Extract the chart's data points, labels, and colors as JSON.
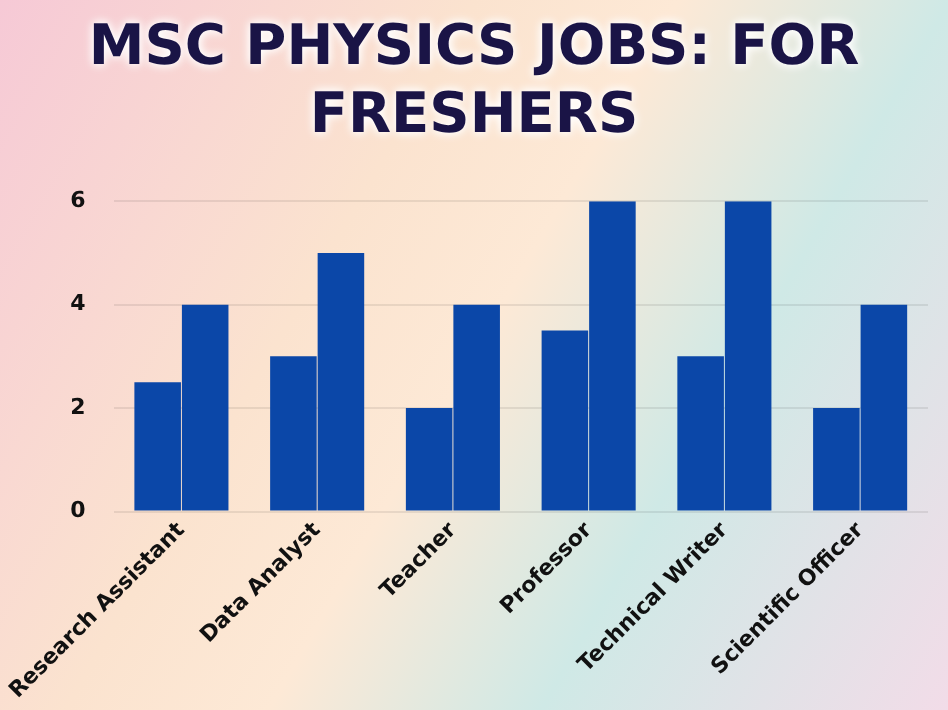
{
  "chart_data": {
    "type": "bar",
    "title": "MSC PHYSICS JOBS: FOR FRESHERS",
    "categories": [
      "Research Assistant",
      "Data Analyst",
      "Teacher",
      "Professor",
      "Technical Writer",
      "Scientific Officer"
    ],
    "series": [
      {
        "color": "#0b47a8",
        "values": [
          2.5,
          3,
          2,
          3.5,
          3,
          2
        ]
      },
      {
        "color": "#0b47a8",
        "values": [
          4,
          5,
          4,
          6,
          6,
          4
        ]
      }
    ],
    "ylim": [
      0,
      6
    ],
    "yticks": [
      0,
      2,
      4,
      6
    ],
    "grid": "y",
    "legend": false
  }
}
